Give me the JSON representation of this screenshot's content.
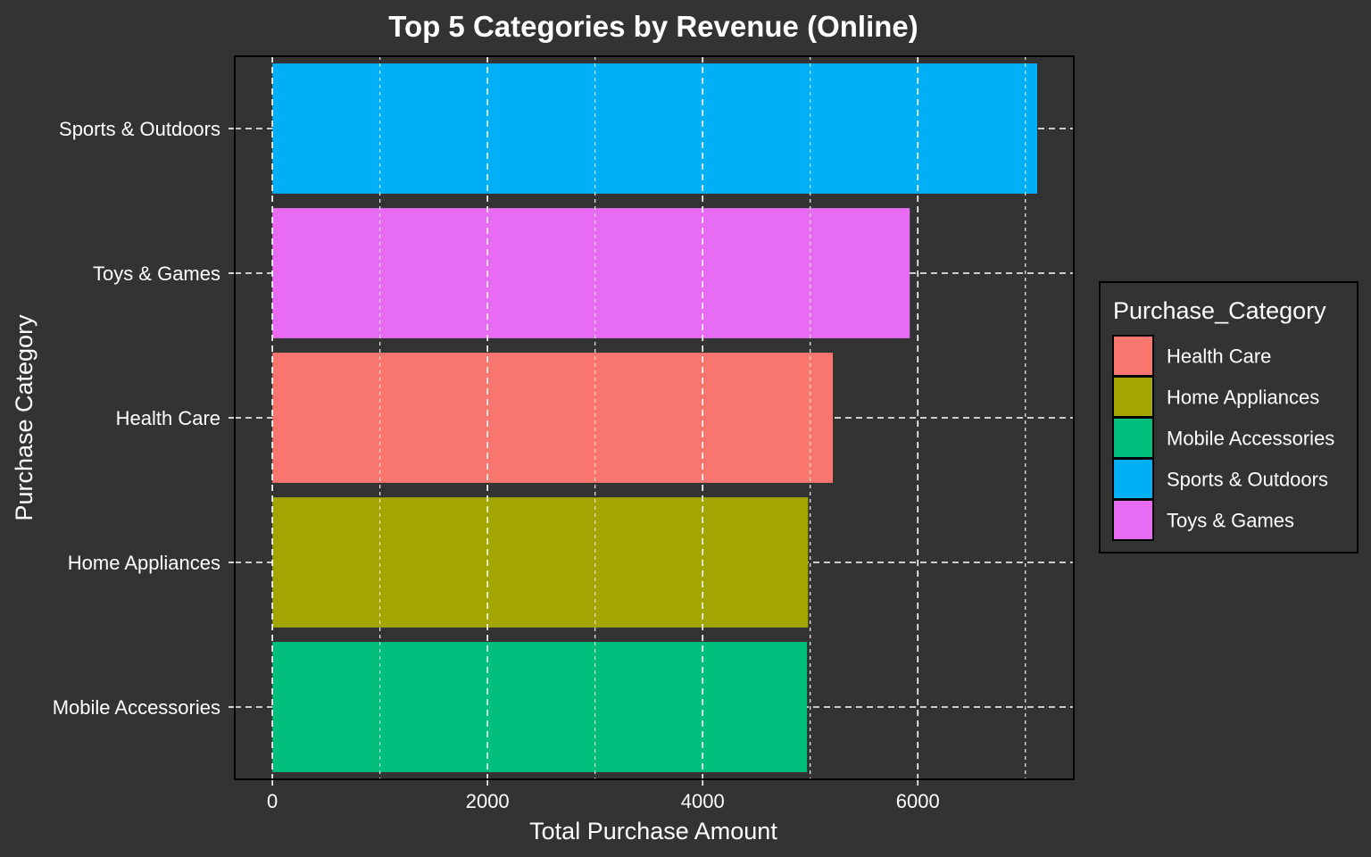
{
  "chart_data": {
    "type": "bar",
    "orientation": "horizontal",
    "title": "Top 5 Categories by Revenue (Online)",
    "xlabel": "Total Purchase Amount",
    "ylabel": "Purchase Category",
    "categories": [
      "Sports & Outdoors",
      "Toys & Games",
      "Health Care",
      "Home Appliances",
      "Mobile Accessories"
    ],
    "values": [
      7110,
      5925,
      5210,
      4980,
      4970
    ],
    "colors": [
      "#00B0F6",
      "#E76BF3",
      "#F8766D",
      "#A3A500",
      "#00BF7D"
    ],
    "xlim": [
      -350,
      7450
    ],
    "xticks": [
      0,
      2000,
      4000,
      6000
    ],
    "xtick_labels": [
      "0",
      "2000",
      "4000",
      "6000"
    ],
    "grid": true,
    "background": "#333333",
    "text_color": "#ffffff",
    "legend": {
      "title": "Purchase_Category",
      "position": "right",
      "entries": [
        {
          "label": "Health Care",
          "color": "#F8766D"
        },
        {
          "label": "Home Appliances",
          "color": "#A3A500"
        },
        {
          "label": "Mobile Accessories",
          "color": "#00BF7D"
        },
        {
          "label": "Sports & Outdoors",
          "color": "#00B0F6"
        },
        {
          "label": "Toys & Games",
          "color": "#E76BF3"
        }
      ]
    }
  }
}
